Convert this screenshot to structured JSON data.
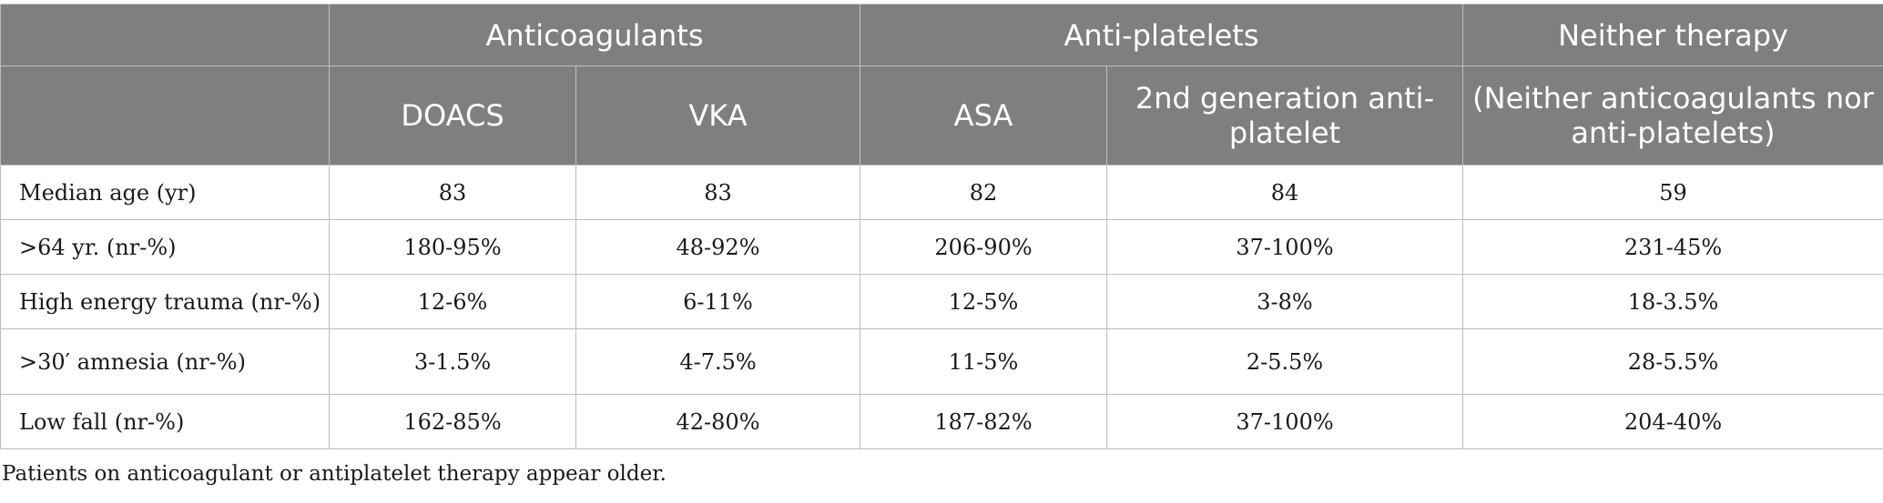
{
  "table": {
    "groups": [
      {
        "label": "",
        "span": 1
      },
      {
        "label": "Anticoagulants",
        "span": 2
      },
      {
        "label": "Anti-platelets",
        "span": 2
      },
      {
        "label": "Neither therapy",
        "span": 1
      }
    ],
    "subheaders": [
      "",
      "DOACS",
      "VKA",
      "ASA",
      "2nd generation anti-platelet",
      "(Neither anticoagulants nor anti-platelets)"
    ],
    "rows": [
      {
        "label": "Median age (yr)",
        "cells": [
          "83",
          "83",
          "82",
          "84",
          "59"
        ]
      },
      {
        "label": ">64 yr. (nr-%)",
        "cells": [
          "180-95%",
          "48-92%",
          "206-90%",
          "37-100%",
          "231-45%"
        ]
      },
      {
        "label": "High energy trauma (nr-%)",
        "cells": [
          "12-6%",
          "6-11%",
          "12-5%",
          "3-8%",
          "18-3.5%"
        ]
      },
      {
        "label": ">30′ amnesia (nr-%)",
        "cells": [
          "3-1.5%",
          "4-7.5%",
          "11-5%",
          "2-5.5%",
          "28-5.5%"
        ]
      },
      {
        "label": "Low fall (nr-%)",
        "cells": [
          "162-85%",
          "42-80%",
          "187-82%",
          "37-100%",
          "204-40%"
        ]
      }
    ]
  },
  "footnote": "Patients on anticoagulant or antiplatelet therapy appear older."
}
